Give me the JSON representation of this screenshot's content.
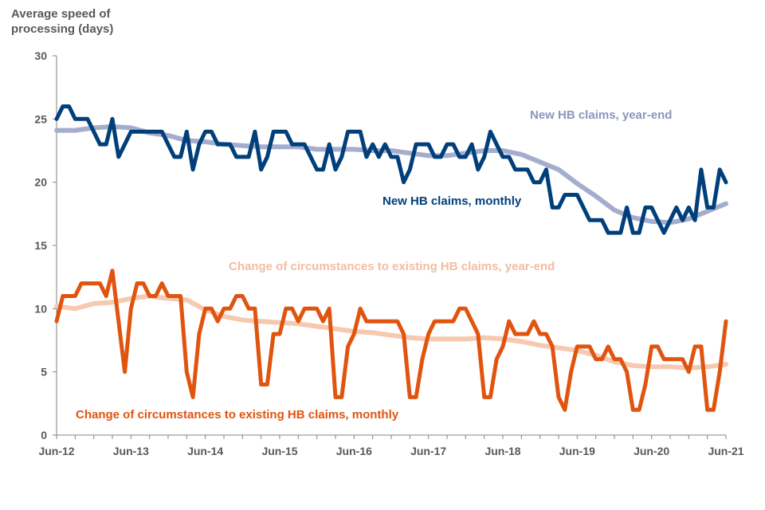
{
  "chart_data": {
    "type": "line",
    "ylabel": "Average speed of processing (days)",
    "xlabel": "",
    "ylim": [
      0,
      30
    ],
    "yticks": [
      0,
      5,
      10,
      15,
      20,
      25,
      30
    ],
    "x_start": "Jun-12",
    "x_months": 109,
    "xticks": [
      "Jun-12",
      "Jun-13",
      "Jun-14",
      "Jun-15",
      "Jun-16",
      "Jun-17",
      "Jun-18",
      "Jun-19",
      "Jun-20",
      "Jun-21"
    ],
    "grid": false,
    "series": [
      {
        "name": "New HB claims, year-end",
        "color": "#A5ADCF",
        "kind": "month_points",
        "points": [
          [
            0,
            24.1
          ],
          [
            3,
            24.1
          ],
          [
            6,
            24.3
          ],
          [
            9,
            24.4
          ],
          [
            12,
            24.3
          ],
          [
            15,
            23.9
          ],
          [
            18,
            23.7
          ],
          [
            21,
            23.3
          ],
          [
            24,
            23.2
          ],
          [
            27,
            23.0
          ],
          [
            30,
            22.9
          ],
          [
            33,
            22.8
          ],
          [
            36,
            22.8
          ],
          [
            39,
            22.8
          ],
          [
            42,
            22.6
          ],
          [
            45,
            22.6
          ],
          [
            48,
            22.6
          ],
          [
            51,
            22.5
          ],
          [
            54,
            22.5
          ],
          [
            57,
            22.3
          ],
          [
            60,
            22.1
          ],
          [
            63,
            22.1
          ],
          [
            66,
            22.3
          ],
          [
            69,
            22.5
          ],
          [
            72,
            22.5
          ],
          [
            75,
            22.2
          ],
          [
            78,
            21.6
          ],
          [
            81,
            21.0
          ],
          [
            84,
            19.9
          ],
          [
            87,
            18.9
          ],
          [
            90,
            17.8
          ],
          [
            93,
            17.2
          ],
          [
            96,
            16.9
          ],
          [
            99,
            16.8
          ],
          [
            102,
            17.1
          ],
          [
            105,
            17.7
          ],
          [
            108,
            18.3
          ]
        ]
      },
      {
        "name": "New HB claims, monthly",
        "color": "#003F7A",
        "kind": "monthly",
        "values": [
          25,
          26,
          26,
          25,
          25,
          25,
          24,
          23,
          23,
          25,
          22,
          23,
          24,
          24,
          24,
          24,
          24,
          24,
          23,
          22,
          22,
          24,
          21,
          23,
          24,
          24,
          23,
          23,
          23,
          22,
          22,
          22,
          24,
          21,
          22,
          24,
          24,
          24,
          23,
          23,
          23,
          22,
          21,
          21,
          23,
          21,
          22,
          24,
          24,
          24,
          22,
          23,
          22,
          23,
          22,
          22,
          20,
          21,
          23,
          23,
          23,
          22,
          22,
          23,
          23,
          22,
          22,
          23,
          21,
          22,
          24,
          23,
          22,
          22,
          21,
          21,
          21,
          20,
          20,
          21,
          18,
          18,
          19,
          19,
          19,
          18,
          17,
          17,
          17,
          16,
          16,
          16,
          18,
          16,
          16,
          18,
          18,
          17,
          16,
          17,
          18,
          17,
          18,
          17,
          21,
          18,
          18,
          21,
          20
        ]
      },
      {
        "name": "Change of circumstances to existing HB claims, year-end",
        "color": "#F6C9B0",
        "kind": "month_points",
        "points": [
          [
            0,
            10.2
          ],
          [
            3,
            10.0
          ],
          [
            6,
            10.4
          ],
          [
            9,
            10.5
          ],
          [
            12,
            10.8
          ],
          [
            15,
            11.0
          ],
          [
            18,
            10.8
          ],
          [
            21,
            10.7
          ],
          [
            24,
            9.9
          ],
          [
            27,
            9.4
          ],
          [
            30,
            9.1
          ],
          [
            33,
            9.0
          ],
          [
            36,
            8.9
          ],
          [
            39,
            8.8
          ],
          [
            42,
            8.6
          ],
          [
            45,
            8.4
          ],
          [
            48,
            8.2
          ],
          [
            51,
            8.1
          ],
          [
            54,
            7.9
          ],
          [
            57,
            7.7
          ],
          [
            60,
            7.6
          ],
          [
            63,
            7.6
          ],
          [
            66,
            7.6
          ],
          [
            69,
            7.7
          ],
          [
            72,
            7.6
          ],
          [
            75,
            7.4
          ],
          [
            78,
            7.1
          ],
          [
            81,
            6.9
          ],
          [
            84,
            6.7
          ],
          [
            87,
            6.3
          ],
          [
            90,
            5.8
          ],
          [
            93,
            5.5
          ],
          [
            96,
            5.4
          ],
          [
            99,
            5.4
          ],
          [
            102,
            5.3
          ],
          [
            105,
            5.4
          ],
          [
            108,
            5.6
          ]
        ]
      },
      {
        "name": "Change of circumstances to existing HB claims, monthly",
        "color": "#E0540F",
        "kind": "monthly",
        "values": [
          9,
          11,
          11,
          11,
          12,
          12,
          12,
          12,
          11,
          13,
          9,
          5,
          10,
          12,
          12,
          11,
          11,
          12,
          11,
          11,
          11,
          5,
          3,
          8,
          10,
          10,
          9,
          10,
          10,
          11,
          11,
          10,
          10,
          4,
          4,
          8,
          8,
          10,
          10,
          9,
          10,
          10,
          10,
          9,
          10,
          3,
          3,
          7,
          8,
          10,
          9,
          9,
          9,
          9,
          9,
          9,
          8,
          3,
          3,
          6,
          8,
          9,
          9,
          9,
          9,
          10,
          10,
          9,
          8,
          3,
          3,
          6,
          7,
          9,
          8,
          8,
          8,
          9,
          8,
          8,
          7,
          3,
          2,
          5,
          7,
          7,
          7,
          6,
          6,
          7,
          6,
          6,
          5,
          2,
          2,
          4,
          7,
          7,
          6,
          6,
          6,
          6,
          5,
          7,
          7,
          2,
          2,
          5,
          9
        ]
      }
    ],
    "annotations": [
      "New HB claims, year-end",
      "New HB claims, monthly",
      "Change of circumstances to existing HB claims, year-end",
      "Change of circumstances to existing HB claims, monthly"
    ]
  }
}
